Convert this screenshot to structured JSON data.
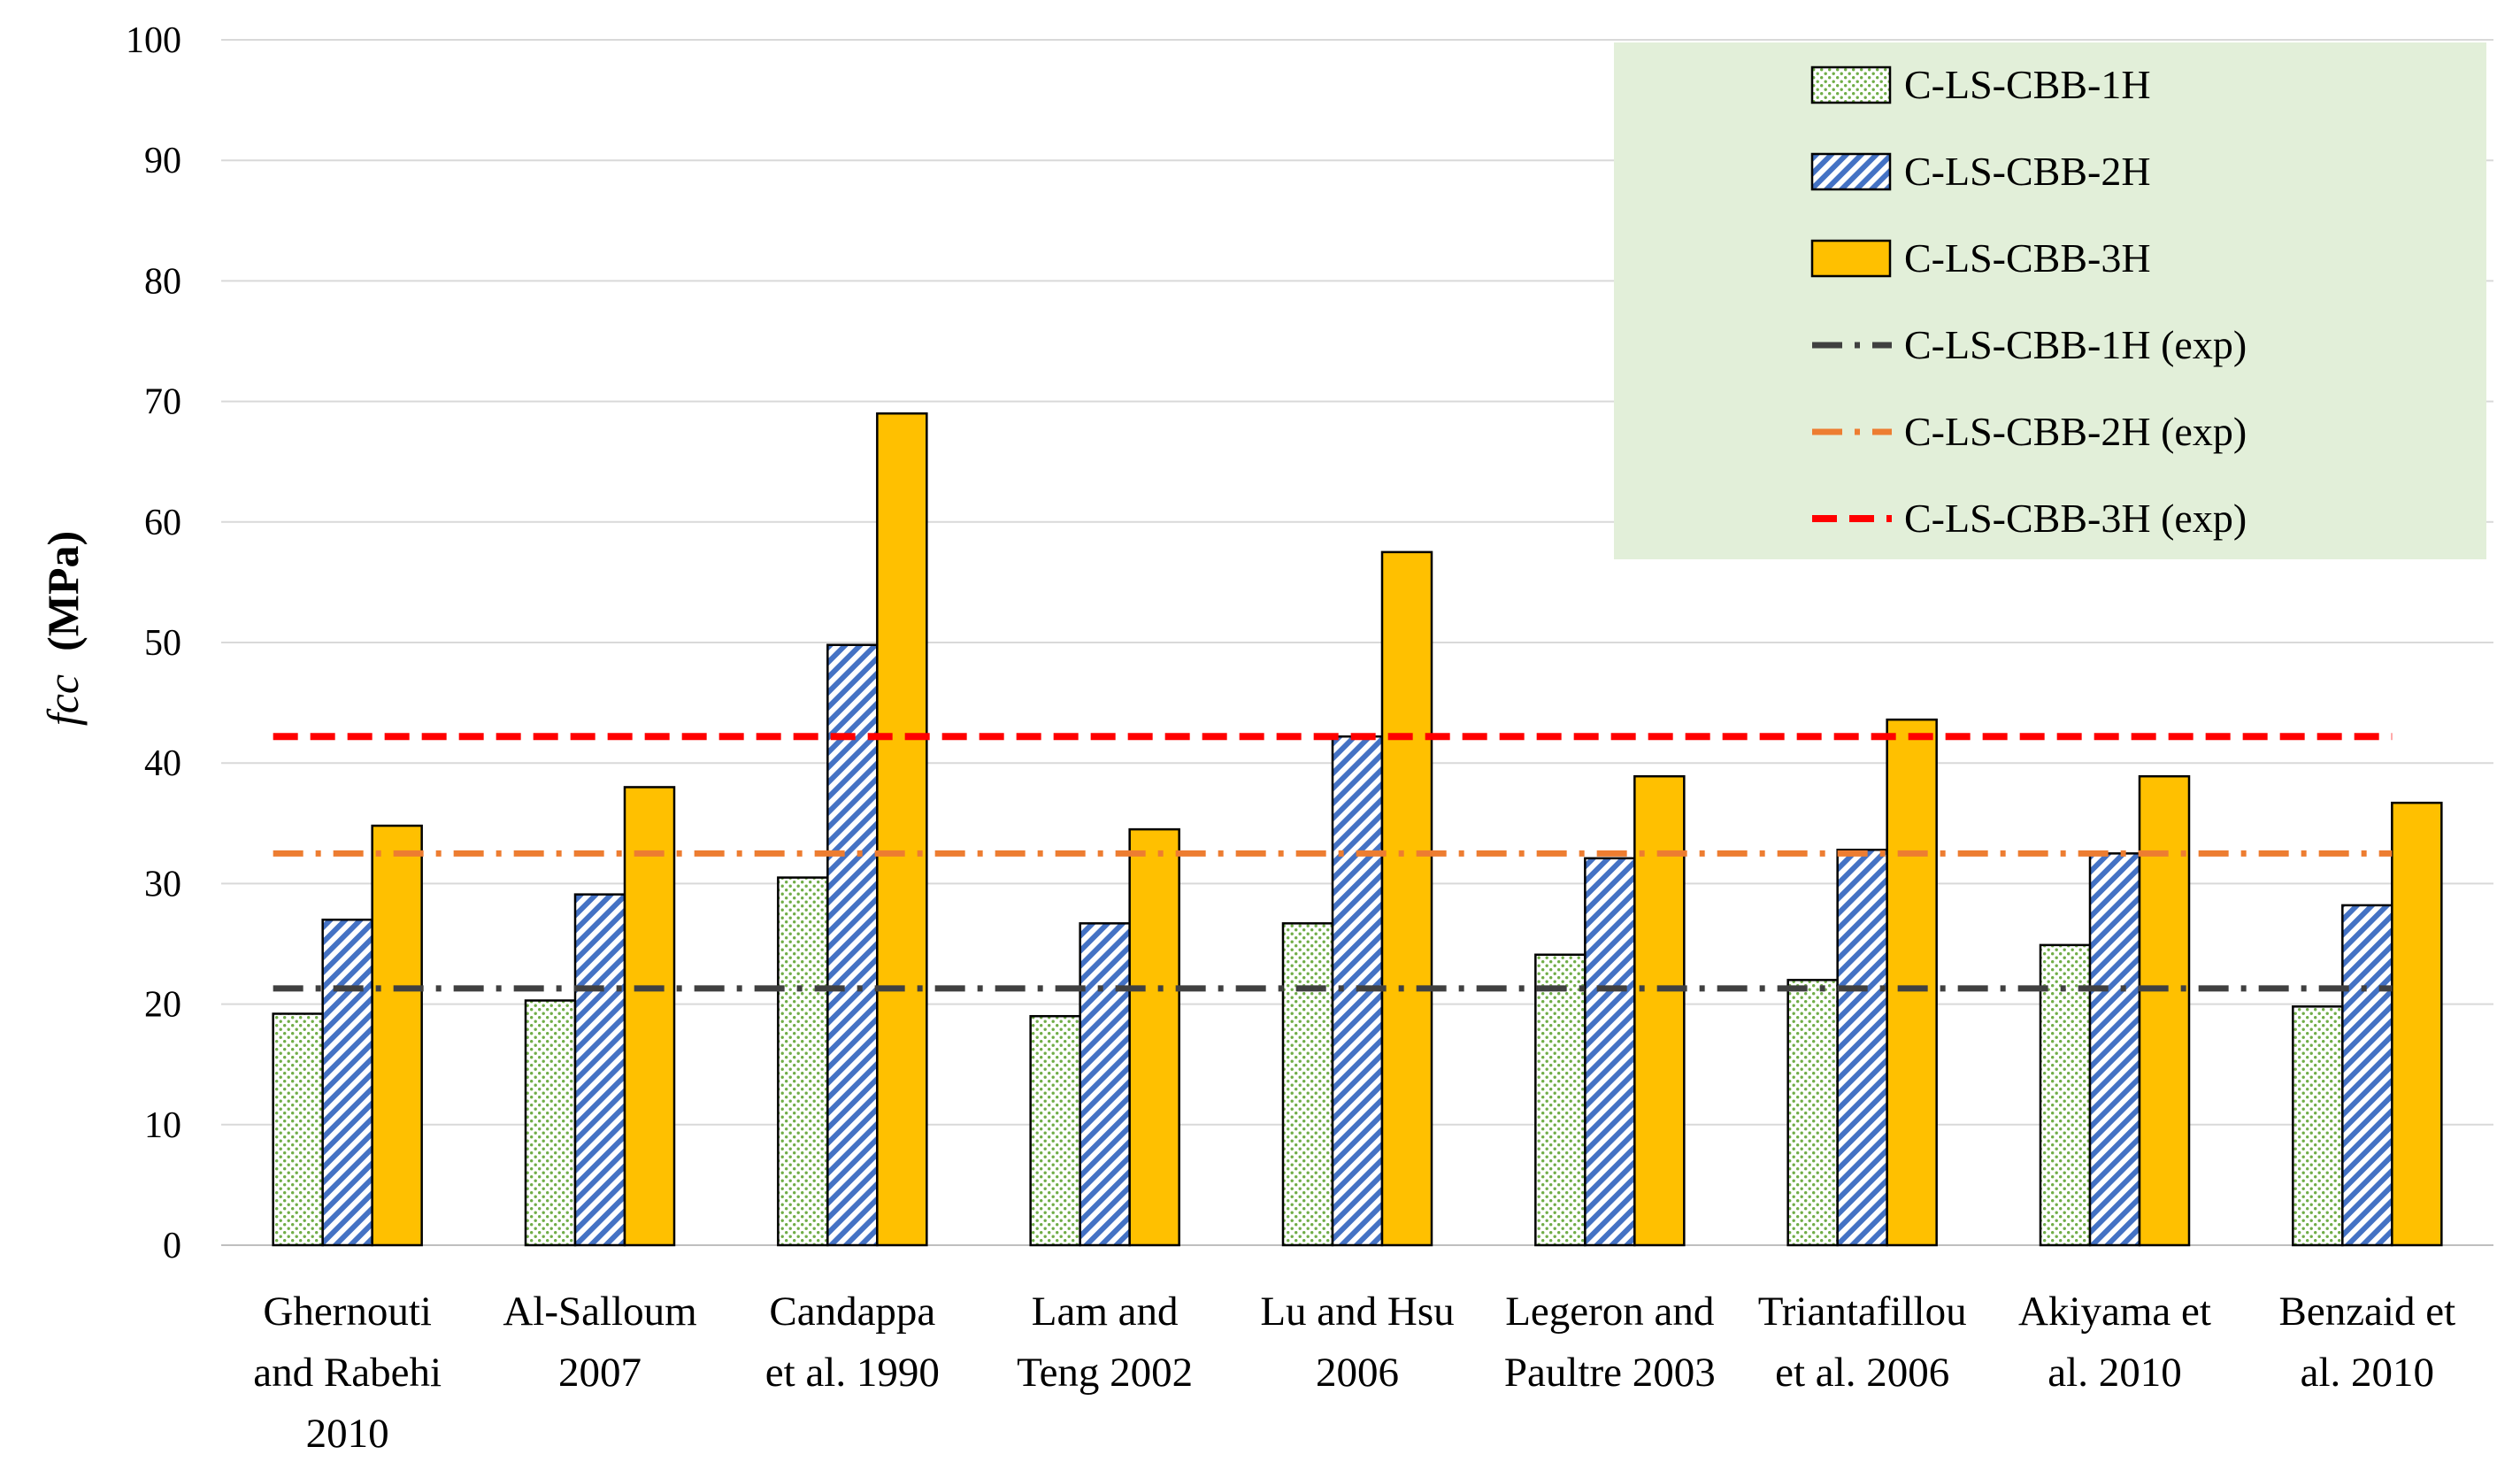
{
  "chart_data": {
    "type": "bar",
    "title": "",
    "xlabel": "",
    "ylabel": "fcc",
    "ylabel_unit": "(MPa)",
    "ylim": [
      0,
      100
    ],
    "yticks": [
      0,
      10,
      20,
      30,
      40,
      50,
      60,
      70,
      80,
      90,
      100
    ],
    "grid": true,
    "legend_position": "top-right",
    "categories": [
      [
        "Ghernouti",
        "and Rabehi",
        "2010"
      ],
      [
        "Al-Salloum",
        "2007"
      ],
      [
        "Candappa",
        "et al. 1990"
      ],
      [
        "Lam and",
        "Teng 2002"
      ],
      [
        "Lu and Hsu",
        "2006"
      ],
      [
        "Legeron and",
        "Paultre 2003"
      ],
      [
        "Triantafillou",
        "et al. 2006"
      ],
      [
        "Akiyama et",
        "al.  2010"
      ],
      [
        "Benzaid et",
        "al. 2010"
      ]
    ],
    "series": [
      {
        "name": "C-LS-CBB-1H",
        "color": "#70AD47",
        "values": [
          19.2,
          20.3,
          30.5,
          19.0,
          26.7,
          24.1,
          22.0,
          24.9,
          19.8
        ]
      },
      {
        "name": "C-LS-CBB-2H",
        "color": "#4472C4",
        "values": [
          27.0,
          29.1,
          49.8,
          26.7,
          42.2,
          32.1,
          32.8,
          32.5,
          28.2
        ]
      },
      {
        "name": "C-LS-CBB-3H",
        "color": "#FFC000",
        "values": [
          34.8,
          38.0,
          69.0,
          34.5,
          57.5,
          38.9,
          43.6,
          38.9,
          36.7
        ]
      }
    ],
    "reference_lines": [
      {
        "name": "C-LS-CBB-1H (exp)",
        "value": 21.3,
        "color": "#404040",
        "style": "dash-dot"
      },
      {
        "name": "C-LS-CBB-2H (exp)",
        "value": 32.5,
        "color": "#ED7D31",
        "style": "dash-dot"
      },
      {
        "name": "C-LS-CBB-3H (exp)",
        "value": 42.2,
        "color": "#FF0000",
        "style": "dash"
      }
    ]
  },
  "legend_background": "#E2EFD9"
}
